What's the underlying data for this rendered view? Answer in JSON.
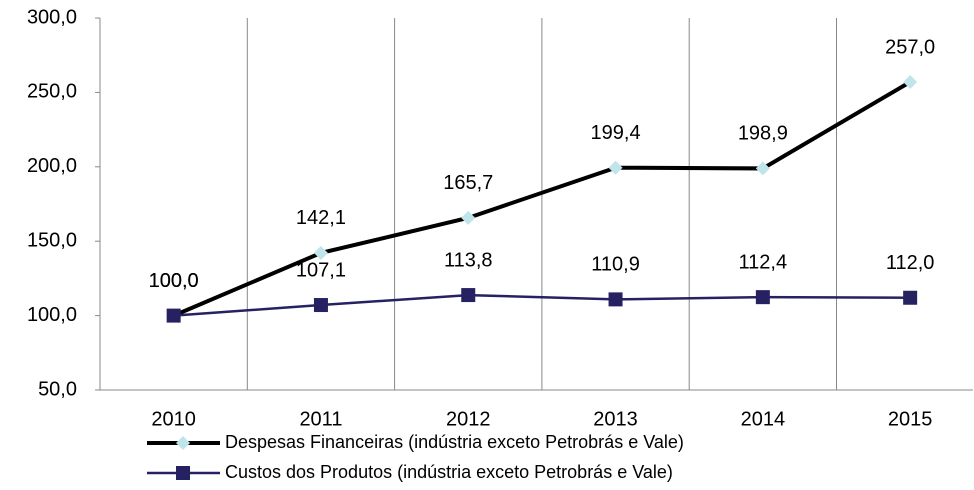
{
  "chart_data": {
    "type": "line",
    "categories": [
      "2010",
      "2011",
      "2012",
      "2013",
      "2014",
      "2015"
    ],
    "series": [
      {
        "name": "Despesas Financeiras (indústria exceto Petrobrás e Vale)",
        "color": "#000000",
        "marker": "diamond",
        "marker_color": "#bfe4ea",
        "values": [
          100.0,
          142.1,
          165.7,
          199.4,
          198.9,
          257.0
        ],
        "value_labels": [
          "100,0",
          "142,1",
          "165,7",
          "199,4",
          "198,9",
          "257,0"
        ]
      },
      {
        "name": "Custos dos Produtos (indústria exceto Petrobrás e Vale)",
        "color": "#262262",
        "marker": "square",
        "marker_color": "#262262",
        "values": [
          100.0,
          107.1,
          113.8,
          110.9,
          112.4,
          112.0
        ],
        "value_labels": [
          "100,0",
          "107,1",
          "113,8",
          "110,9",
          "112,4",
          "112,0"
        ]
      }
    ],
    "ylim": [
      50,
      300
    ],
    "yticks": [
      {
        "value": 50,
        "label": "50,0"
      },
      {
        "value": 100,
        "label": "100,0"
      },
      {
        "value": 150,
        "label": "150,0"
      },
      {
        "value": 200,
        "label": "200,0"
      },
      {
        "value": 250,
        "label": "250,0"
      },
      {
        "value": 300,
        "label": "300,0"
      }
    ],
    "grid": false,
    "legend": "bottom"
  }
}
